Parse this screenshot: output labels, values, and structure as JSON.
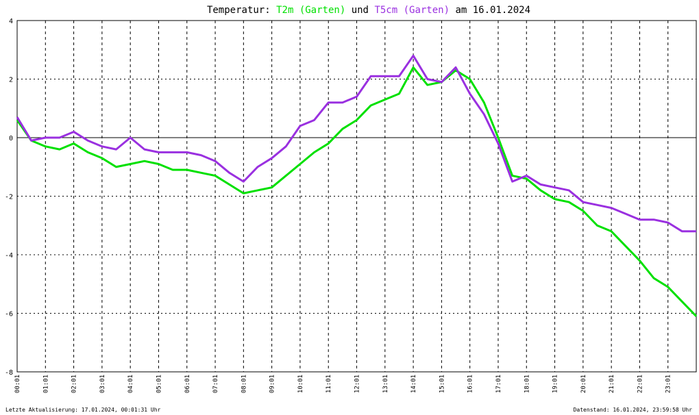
{
  "chart_data": {
    "type": "line",
    "title_parts": [
      "Temperatur:",
      "und",
      "am 16.01.2024"
    ],
    "footer_left": "Letzte Aktualisierung: 17.01.2024, 00:01:31 Uhr",
    "footer_right": "Datenstand: 16.01.2024, 23:59:58 Uhr",
    "x": [
      1,
      31,
      61,
      91,
      121,
      151,
      181,
      211,
      241,
      271,
      301,
      331,
      361,
      391,
      421,
      451,
      481,
      511,
      541,
      571,
      601,
      631,
      661,
      691,
      721,
      751,
      781,
      811,
      841,
      871,
      901,
      931,
      961,
      991,
      1021,
      1051,
      1081,
      1111,
      1141,
      1171,
      1201,
      1231,
      1261,
      1291,
      1321,
      1351,
      1381,
      1411,
      1441
    ],
    "series": [
      {
        "name": "T2m (Garten)",
        "color": "#00e000",
        "values": [
          0.6,
          -0.1,
          -0.3,
          -0.4,
          -0.2,
          -0.5,
          -0.7,
          -1.0,
          -0.9,
          -0.8,
          -0.9,
          -1.1,
          -1.1,
          -1.2,
          -1.3,
          -1.6,
          -1.9,
          -1.8,
          -1.7,
          -1.3,
          -0.9,
          -0.5,
          -0.2,
          0.3,
          0.6,
          1.1,
          1.3,
          1.5,
          2.4,
          1.8,
          1.9,
          2.3,
          2.0,
          1.2,
          0.0,
          -1.3,
          -1.4,
          -1.8,
          -2.1,
          -2.2,
          -2.5,
          -3.0,
          -3.2,
          -3.7,
          -4.2,
          -4.8,
          -5.1,
          -5.6,
          -6.1
        ]
      },
      {
        "name": "T5cm (Garten)",
        "color": "#9a30e0",
        "values": [
          0.7,
          -0.1,
          0.0,
          0.0,
          0.2,
          -0.1,
          -0.3,
          -0.4,
          0.0,
          -0.4,
          -0.5,
          -0.5,
          -0.5,
          -0.6,
          -0.8,
          -1.2,
          -1.5,
          -1.0,
          -0.7,
          -0.3,
          0.4,
          0.6,
          1.2,
          1.2,
          1.4,
          2.1,
          2.1,
          2.1,
          2.8,
          2.0,
          1.9,
          2.4,
          1.5,
          0.8,
          -0.2,
          -1.5,
          -1.3,
          -1.6,
          -1.7,
          -1.8,
          -2.2,
          -2.3,
          -2.4,
          -2.6,
          -2.8,
          -2.8,
          -2.9,
          -3.2,
          -3.2
        ]
      }
    ],
    "xlim": [
      1,
      1441
    ],
    "xticks": [
      {
        "value": 1,
        "label": "00:01"
      },
      {
        "value": 61,
        "label": "01:01"
      },
      {
        "value": 121,
        "label": "02:01"
      },
      {
        "value": 181,
        "label": "03:01"
      },
      {
        "value": 241,
        "label": "04:01"
      },
      {
        "value": 301,
        "label": "05:01"
      },
      {
        "value": 361,
        "label": "06:01"
      },
      {
        "value": 421,
        "label": "07:01"
      },
      {
        "value": 481,
        "label": "08:01"
      },
      {
        "value": 541,
        "label": "09:01"
      },
      {
        "value": 601,
        "label": "10:01"
      },
      {
        "value": 661,
        "label": "11:01"
      },
      {
        "value": 721,
        "label": "12:01"
      },
      {
        "value": 781,
        "label": "13:01"
      },
      {
        "value": 841,
        "label": "14:01"
      },
      {
        "value": 901,
        "label": "15:01"
      },
      {
        "value": 961,
        "label": "16:01"
      },
      {
        "value": 1021,
        "label": "17:01"
      },
      {
        "value": 1081,
        "label": "18:01"
      },
      {
        "value": 1141,
        "label": "19:01"
      },
      {
        "value": 1201,
        "label": "20:01"
      },
      {
        "value": 1261,
        "label": "21:01"
      },
      {
        "value": 1321,
        "label": "22:01"
      },
      {
        "value": 1381,
        "label": "23:01"
      }
    ],
    "ylim": [
      -8,
      4
    ],
    "yticks": [
      4,
      2,
      0,
      -2,
      -4,
      -6,
      -8
    ],
    "grid": true
  }
}
